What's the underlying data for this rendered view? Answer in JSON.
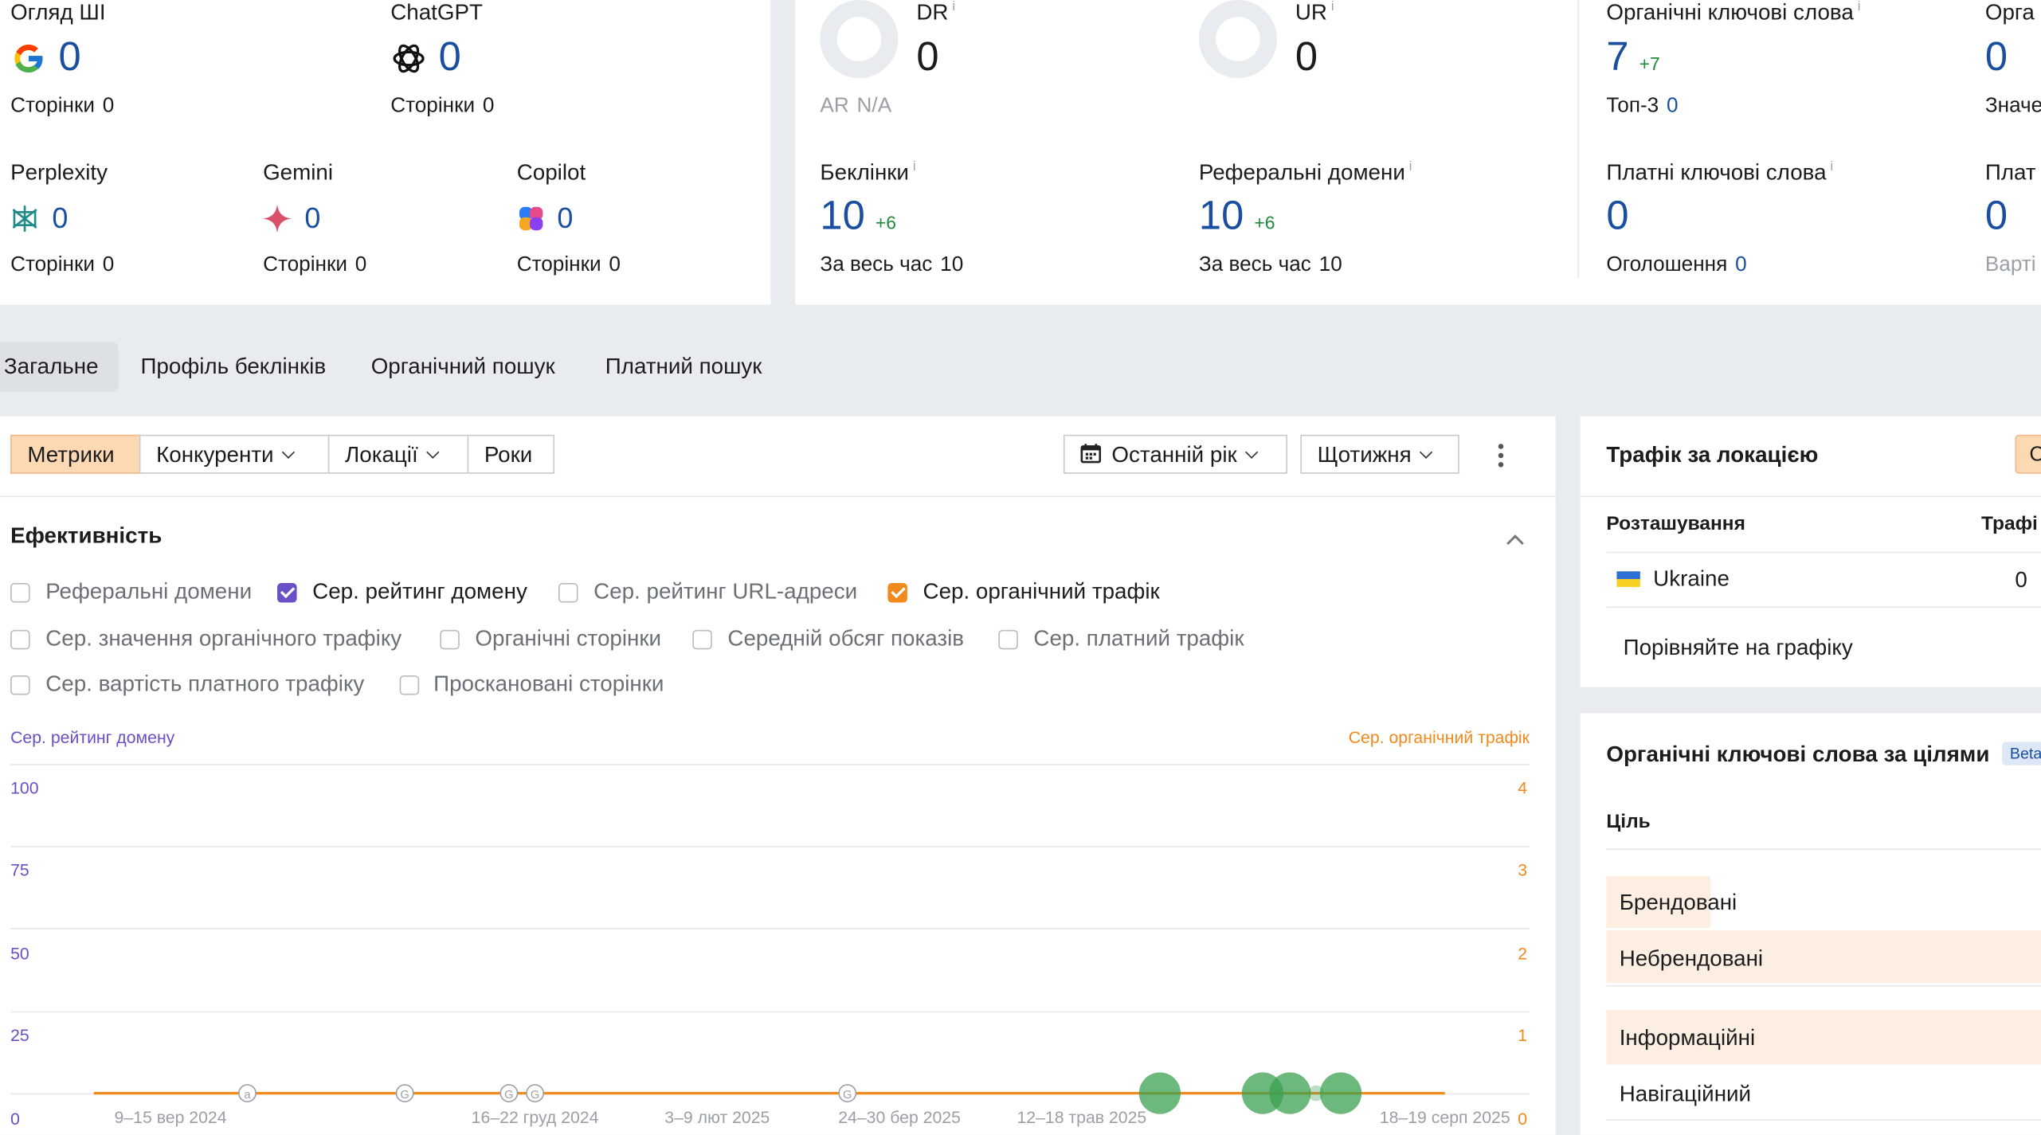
{
  "ai_overview": {
    "google": {
      "label": "Огляд ШІ",
      "value": "0",
      "pages_label": "Сторінки",
      "pages_value": "0"
    },
    "chatgpt": {
      "label": "ChatGPT",
      "value": "0",
      "pages_label": "Сторінки",
      "pages_value": "0"
    },
    "perplexity": {
      "label": "Perplexity",
      "value": "0",
      "pages_label": "Сторінки",
      "pages_value": "0"
    },
    "gemini": {
      "label": "Gemini",
      "value": "0",
      "pages_label": "Сторінки",
      "pages_value": "0"
    },
    "copilot": {
      "label": "Copilot",
      "value": "0",
      "pages_label": "Сторінки",
      "pages_value": "0"
    }
  },
  "authority": {
    "dr": {
      "label": "DR",
      "value": "0",
      "ar_label": "AR",
      "ar_value": "N/A"
    },
    "ur": {
      "label": "UR",
      "value": "0"
    },
    "backlinks": {
      "label": "Беклінки",
      "value": "10",
      "delta": "+6",
      "all_time_label": "За весь час",
      "all_time_value": "10"
    },
    "ref_domains": {
      "label": "Реферальні домени",
      "value": "10",
      "delta": "+6",
      "all_time_label": "За весь час",
      "all_time_value": "10"
    },
    "info": "i"
  },
  "keywords": {
    "organic": {
      "label": "Органічні ключові слова",
      "value": "7",
      "delta": "+7",
      "top3_label": "Топ-3",
      "top3_value": "0"
    },
    "organic_cut": {
      "label": "Орга",
      "value": "0",
      "sub": "Значе"
    },
    "paid": {
      "label": "Платні ключові слова",
      "value": "0",
      "ads_label": "Оголошення",
      "ads_value": "0"
    },
    "paid_cut": {
      "label": "Плат",
      "value": "0",
      "sub": "Варті"
    }
  },
  "tabs": [
    "Загальне",
    "Профіль беклінків",
    "Органічний пошук",
    "Платний пошук"
  ],
  "toolbar": {
    "metrics": "Метрики",
    "competitors": "Конкуренти",
    "locations": "Локації",
    "years": "Роки",
    "period": "Останній рік",
    "interval": "Щотижня"
  },
  "performance": {
    "title": "Ефективність",
    "checkboxes": [
      {
        "label": "Реферальні домени",
        "checked": false
      },
      {
        "label": "Сер. рейтинг домену",
        "checked": true,
        "color": "#6b4fc4"
      },
      {
        "label": "Сер. рейтинг URL-адреси",
        "checked": false
      },
      {
        "label": "Сер. органічний трафік",
        "checked": true,
        "color": "#f08a1c"
      },
      {
        "label": "Сер. значення органічного трафіку",
        "checked": false
      },
      {
        "label": "Органічні сторінки",
        "checked": false
      },
      {
        "label": "Середній обсяг показів",
        "checked": false
      },
      {
        "label": "Сер. платний трафік",
        "checked": false
      },
      {
        "label": "Сер. вартість платного трафіку",
        "checked": false
      },
      {
        "label": "Проскановані сторінки",
        "checked": false
      }
    ]
  },
  "chart_data": {
    "type": "line",
    "left_axis_label": "Сер. рейтинг домену",
    "right_axis_label": "Сер. органічний трафік",
    "left_ticks": [
      "100",
      "75",
      "50",
      "25",
      "0"
    ],
    "right_ticks": [
      "4",
      "3",
      "2",
      "1",
      "0"
    ],
    "left_ylim": [
      0,
      100
    ],
    "right_ylim": [
      0,
      4
    ],
    "x_ticks": [
      "9–15 вер 2024",
      "16–22 груд 2024",
      "3–9 лют 2025",
      "24–30 бер 2025",
      "12–18 трав 2025",
      "18–19 серп 2025"
    ],
    "series": [
      {
        "name": "Сер. органічний трафік",
        "color": "#f08a1c",
        "values": [
          0,
          0
        ]
      }
    ],
    "annotation_markers": [
      "a",
      "G",
      "G",
      "G",
      "G"
    ],
    "grid": true
  },
  "traffic_by_location": {
    "title": "Трафік за локацією",
    "col_location": "Розташування",
    "col_traffic": "Трафі",
    "rows": [
      {
        "country": "Ukraine",
        "traffic": "0"
      }
    ],
    "compare_link": "Порівняйте на графіку",
    "badge": "С"
  },
  "intent_keywords": {
    "title": "Органічні ключові слова за цілями",
    "badge": "Beta",
    "col": "Ціль",
    "rows": [
      "Брендовані",
      "Небрендовані",
      "Інформаційні",
      "Навігаційний"
    ]
  }
}
